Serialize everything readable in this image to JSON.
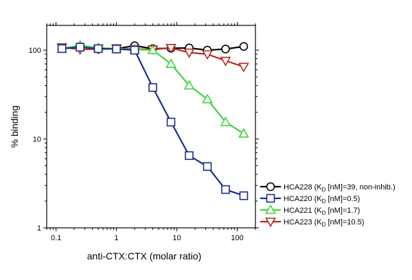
{
  "chart_data": {
    "type": "line",
    "xscale": "log",
    "yscale": "log",
    "xlim": [
      0.07,
      200
    ],
    "ylim": [
      1,
      190
    ],
    "xlabel": "anti-CTX:CTX (molar ratio)",
    "ylabel": "% binding",
    "x_ticks": [
      {
        "value": 0.1,
        "label": "0.1"
      },
      {
        "value": 1,
        "label": "1"
      },
      {
        "value": 10,
        "label": "10"
      },
      {
        "value": 100,
        "label": "100"
      }
    ],
    "y_ticks": [
      {
        "value": 1,
        "label": "1"
      },
      {
        "value": 10,
        "label": "10"
      },
      {
        "value": 100,
        "label": "100"
      }
    ],
    "grid": false,
    "legend_position": "right",
    "series": [
      {
        "name": "HCA228 (K_D [nM]=39, non-inhib.)",
        "legend_main": "HCA228 (K",
        "legend_sub": "D",
        "legend_rest": " [nM]=39, non-inhib.)",
        "color": "#000000",
        "marker": "circle",
        "x": [
          0.125,
          0.25,
          0.5,
          1,
          2,
          4,
          8,
          16,
          32,
          64,
          128
        ],
        "y": [
          105,
          110,
          103,
          104,
          112,
          104,
          105,
          106,
          100,
          103,
          110
        ]
      },
      {
        "name": "HCA220 (K_D [nM]=0.5)",
        "legend_main": "HCA220 (K",
        "legend_sub": "D",
        "legend_rest": " [nM]=0.5)",
        "color": "#1a2b8f",
        "marker": "square",
        "x": [
          0.125,
          0.25,
          0.5,
          1,
          2,
          4,
          8,
          16,
          32,
          64,
          128
        ],
        "y": [
          104,
          108,
          104,
          103,
          100,
          38,
          15.5,
          6.5,
          4.9,
          2.7,
          2.3
        ]
      },
      {
        "name": "HCA221 (K_D [nM]=1.7)",
        "legend_main": "HCA221 (K",
        "legend_sub": "D",
        "legend_rest": " [nM]=1.7)",
        "color": "#3fd43f",
        "marker": "triangle-up",
        "x": [
          0.125,
          0.25,
          0.5,
          1,
          2,
          4,
          8,
          16,
          32,
          64,
          128
        ],
        "y": [
          104,
          113,
          106,
          104,
          102,
          100,
          70,
          40,
          28,
          15.5,
          11.5
        ]
      },
      {
        "name": "HCA223 (K_D [nM]=10.5)",
        "legend_main": "HCA223 (K",
        "legend_sub": "D",
        "legend_rest": " [nM]=10.5)",
        "color": "#b5281f",
        "marker": "triangle-down",
        "x": [
          0.125,
          0.25,
          0.5,
          1,
          2,
          4,
          8,
          16,
          32,
          64,
          128
        ],
        "y": [
          108,
          102,
          103,
          105,
          103,
          102,
          106,
          94,
          90,
          76,
          65
        ]
      }
    ]
  }
}
